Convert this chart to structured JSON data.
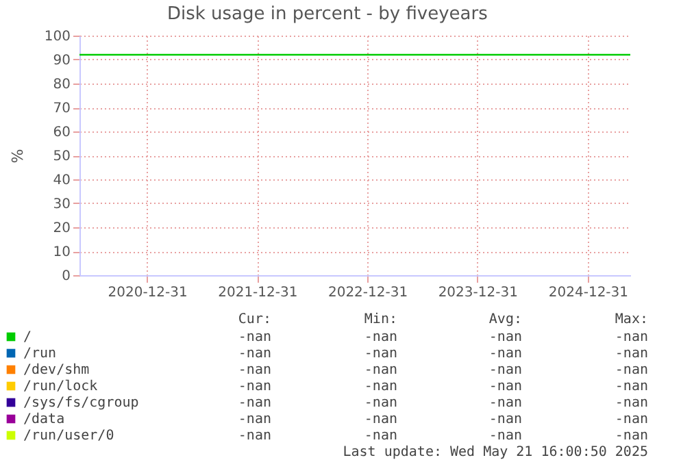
{
  "chart_data": {
    "type": "line",
    "title": "Disk usage in percent - by fiveyears",
    "ylabel": "%",
    "x": [
      "2020-05-21",
      "2025-05-21"
    ],
    "series": [
      {
        "name": "/",
        "color": "#00cc00",
        "values": [
          92,
          92
        ]
      },
      {
        "name": "/run",
        "color": "#0066b3",
        "values": [
          null,
          null
        ]
      },
      {
        "name": "/dev/shm",
        "color": "#ff8000",
        "values": [
          null,
          null
        ]
      },
      {
        "name": "/run/lock",
        "color": "#ffcc00",
        "values": [
          null,
          null
        ]
      },
      {
        "name": "/sys/fs/cgroup",
        "color": "#330099",
        "values": [
          null,
          null
        ]
      },
      {
        "name": "/data",
        "color": "#990099",
        "values": [
          null,
          null
        ]
      },
      {
        "name": "/run/user/0",
        "color": "#ccff00",
        "values": [
          null,
          null
        ]
      }
    ],
    "xlim": [
      "2020-05-21",
      "2025-05-21"
    ],
    "xticks": [
      "2020-12-31",
      "2021-12-31",
      "2022-12-31",
      "2023-12-31",
      "2024-12-31"
    ],
    "ylim": [
      0,
      100
    ],
    "yticks": [
      0,
      10,
      20,
      30,
      40,
      50,
      60,
      70,
      80,
      90,
      100
    ],
    "grid": true,
    "legend": "bottom",
    "marker": "none",
    "line_style": "solid",
    "annotations": [
      "Cur:",
      "Min:",
      "Avg:",
      "Max:",
      "-nan",
      "-nan",
      "-nan",
      "-nan",
      "-nan",
      "-nan",
      "-nan",
      "-nan",
      "-nan",
      "-nan",
      "-nan",
      "-nan",
      "-nan",
      "-nan",
      "-nan",
      "-nan",
      "-nan",
      "-nan",
      "-nan",
      "-nan",
      "-nan",
      "-nan",
      "-nan",
      "-nan",
      "-nan",
      "-nan",
      "-nan",
      "-nan",
      "Last update: Wed May 21 16:00:50 2025"
    ]
  }
}
